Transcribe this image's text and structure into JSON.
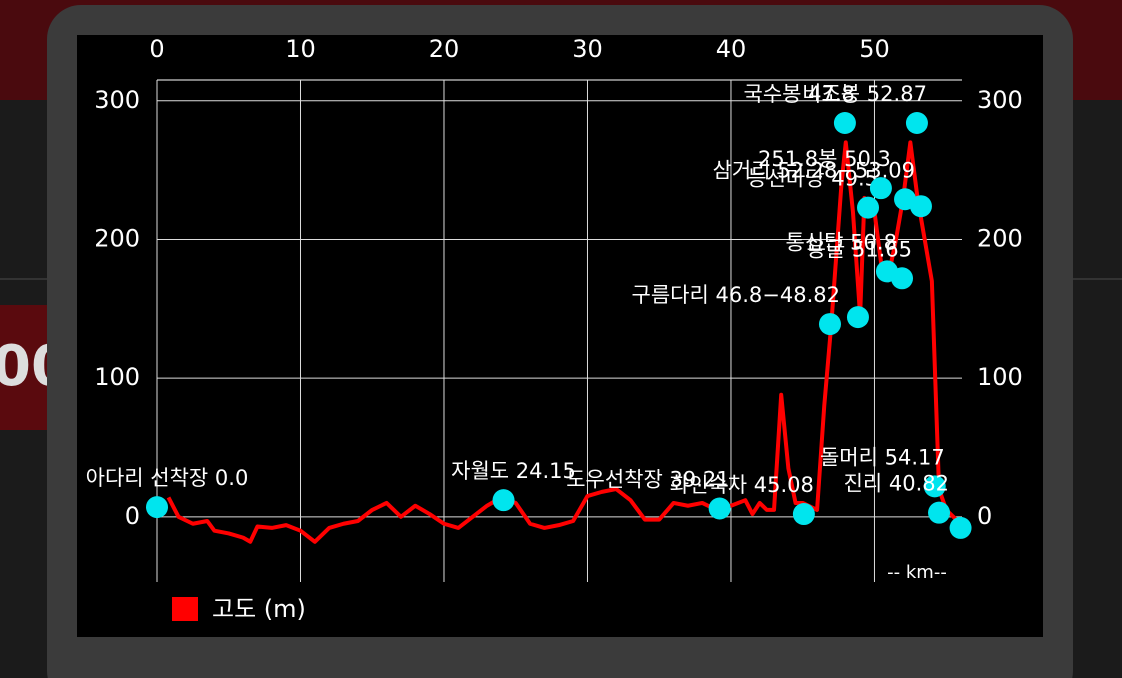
{
  "background_text": "00",
  "chart_data": {
    "type": "line",
    "x_label": "-- km--",
    "xlim": [
      0,
      56.1
    ],
    "xticks": [
      0,
      10,
      20,
      30,
      40,
      50
    ],
    "ylim": [
      -47,
      315
    ],
    "yticks": [
      0,
      100,
      200,
      300
    ],
    "grid": true,
    "legend": "bottom-left",
    "series": [
      {
        "name": "고도 (m)",
        "color": "#ff0000",
        "x": [
          0.8,
          1.5,
          2.5,
          3.5,
          4,
          5,
          6,
          6.5,
          7,
          8,
          9,
          10,
          11,
          12,
          13,
          14,
          15,
          16,
          17,
          18,
          19,
          20,
          21,
          22,
          23,
          24,
          25,
          26,
          27,
          28,
          29,
          30,
          31,
          32,
          33,
          34,
          35,
          36,
          37,
          38,
          39,
          40,
          41,
          41.5,
          42,
          42.5,
          43,
          43.5,
          44,
          44.5,
          45,
          46,
          46.5,
          47,
          47.7,
          48,
          48.5,
          49,
          49.3,
          50,
          50.5,
          51,
          51.5,
          52,
          52.5,
          53,
          53.5,
          54,
          54.5,
          55,
          55.5,
          56
        ],
        "values": [
          14,
          0,
          -5,
          -3,
          -10,
          -12,
          -15,
          -18,
          -7,
          -8,
          -6,
          -10,
          -18,
          -8,
          -5,
          -3,
          5,
          10,
          0,
          8,
          2,
          -5,
          -8,
          0,
          8,
          14,
          10,
          -5,
          -8,
          -6,
          -3,
          15,
          18,
          20,
          12,
          -2,
          -2,
          10,
          8,
          10,
          5,
          8,
          12,
          2,
          10,
          5,
          5,
          88,
          35,
          10,
          10,
          5,
          80,
          140,
          240,
          270,
          220,
          145,
          230,
          220,
          180,
          175,
          200,
          230,
          270,
          230,
          200,
          170,
          20,
          5,
          0,
          -5
        ]
      }
    ],
    "marker_color": "#00e5ee",
    "markers": [
      {
        "x": 0,
        "elevation": 7,
        "label": "아다리 선착장 0.0"
      },
      {
        "x": 24.15,
        "elevation": 12,
        "label": "자월도 24.15"
      },
      {
        "x": 39.21,
        "elevation": 6,
        "label": "도우선착장 39.21"
      },
      {
        "x": 45.08,
        "elevation": 2,
        "label": "화인숙차 45.08"
      },
      {
        "x": 46.9,
        "elevation": 139,
        "label": "구름다리 46.8−48.82"
      },
      {
        "x": 47.94,
        "elevation": 284,
        "label": "국수봉 47.8"
      },
      {
        "x": 48.85,
        "elevation": 144,
        "label": null
      },
      {
        "x": 49.55,
        "elevation": 223,
        "label": "능선마당 49.5"
      },
      {
        "x": 50.45,
        "elevation": 237,
        "label": "251.8봉 50.3"
      },
      {
        "x": 50.87,
        "elevation": 177,
        "label": "통신탑 50.8"
      },
      {
        "x": 51.92,
        "elevation": 172,
        "label": "용굴 51.65"
      },
      {
        "x": 52.13,
        "elevation": 229,
        "label": "삼거리 52.28−53.09"
      },
      {
        "x": 52.96,
        "elevation": 284,
        "label": "비조봉 52.87"
      },
      {
        "x": 53.24,
        "elevation": 224,
        "label": null
      },
      {
        "x": 54.2,
        "elevation": 22,
        "label": "돌머리 54.17"
      },
      {
        "x": 54.5,
        "elevation": 3,
        "label": "진리 40.82"
      },
      {
        "x": 56.0,
        "elevation": -8,
        "label": null
      }
    ]
  }
}
